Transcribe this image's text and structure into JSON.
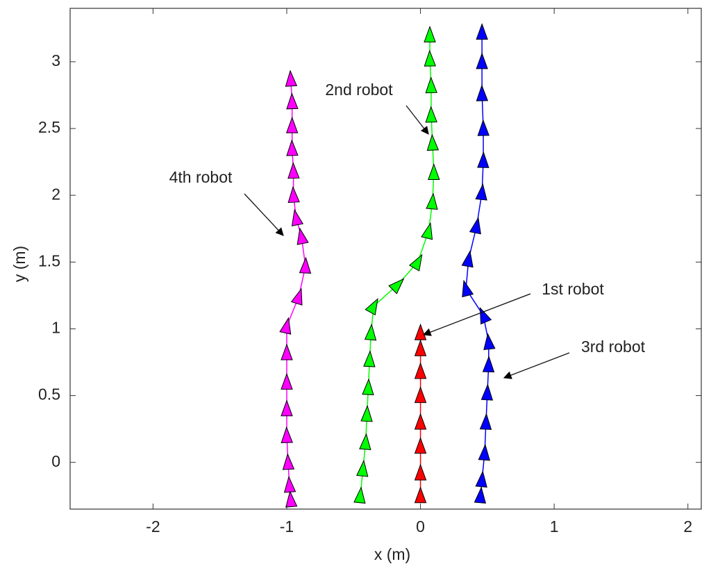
{
  "chart_data": {
    "type": "trajectory",
    "xlabel": "x (m)",
    "ylabel": "y (m)",
    "xlim": [
      -2.62,
      2.1
    ],
    "ylim": [
      -0.35,
      3.4
    ],
    "xticks": [
      -2,
      -1,
      0,
      1,
      2
    ],
    "yticks": [
      0,
      0.5,
      1,
      1.5,
      2,
      2.5,
      3
    ],
    "series": [
      {
        "color": "#ff0000",
        "x": [
          0,
          0,
          0,
          0,
          0,
          0,
          0,
          0
        ],
        "y": [
          -0.25,
          -0.08,
          0.12,
          0.3,
          0.5,
          0.68,
          0.85,
          0.97
        ]
      },
      {
        "color": "#00ff00",
        "x": [
          -0.45,
          -0.43,
          -0.41,
          -0.4,
          -0.39,
          -0.38,
          -0.37,
          -0.35,
          -0.17,
          -0.02,
          0.06,
          0.09,
          0.1,
          0.09,
          0.08,
          0.08,
          0.07,
          0.07
        ],
        "y": [
          -0.25,
          -0.05,
          0.15,
          0.36,
          0.56,
          0.77,
          0.97,
          1.17,
          1.33,
          1.5,
          1.73,
          1.95,
          2.17,
          2.39,
          2.6,
          2.82,
          3.02,
          3.2
        ]
      },
      {
        "color": "#0000ff",
        "x": [
          0.45,
          0.46,
          0.48,
          0.49,
          0.5,
          0.51,
          0.51,
          0.47,
          0.34,
          0.36,
          0.42,
          0.46,
          0.47,
          0.47,
          0.46,
          0.46,
          0.46
        ],
        "y": [
          -0.25,
          -0.13,
          0.07,
          0.3,
          0.52,
          0.73,
          0.9,
          1.1,
          1.3,
          1.52,
          1.77,
          2.02,
          2.26,
          2.5,
          2.76,
          3.0,
          3.22
        ]
      },
      {
        "color": "#ff00ff",
        "x": [
          -0.97,
          -0.98,
          -0.99,
          -1.0,
          -1.0,
          -1.0,
          -1.0,
          -1.0,
          -0.91,
          -0.86,
          -0.89,
          -0.93,
          -0.95,
          -0.95,
          -0.96,
          -0.96,
          -0.96,
          -0.97
        ],
        "y": [
          -0.28,
          -0.17,
          0.0,
          0.2,
          0.4,
          0.6,
          0.82,
          1.02,
          1.24,
          1.47,
          1.69,
          1.83,
          2.0,
          2.18,
          2.35,
          2.52,
          2.7,
          2.87
        ]
      }
    ],
    "annotations": [
      "2nd robot",
      "4th robot",
      "1st robot",
      "3rd robot"
    ]
  }
}
